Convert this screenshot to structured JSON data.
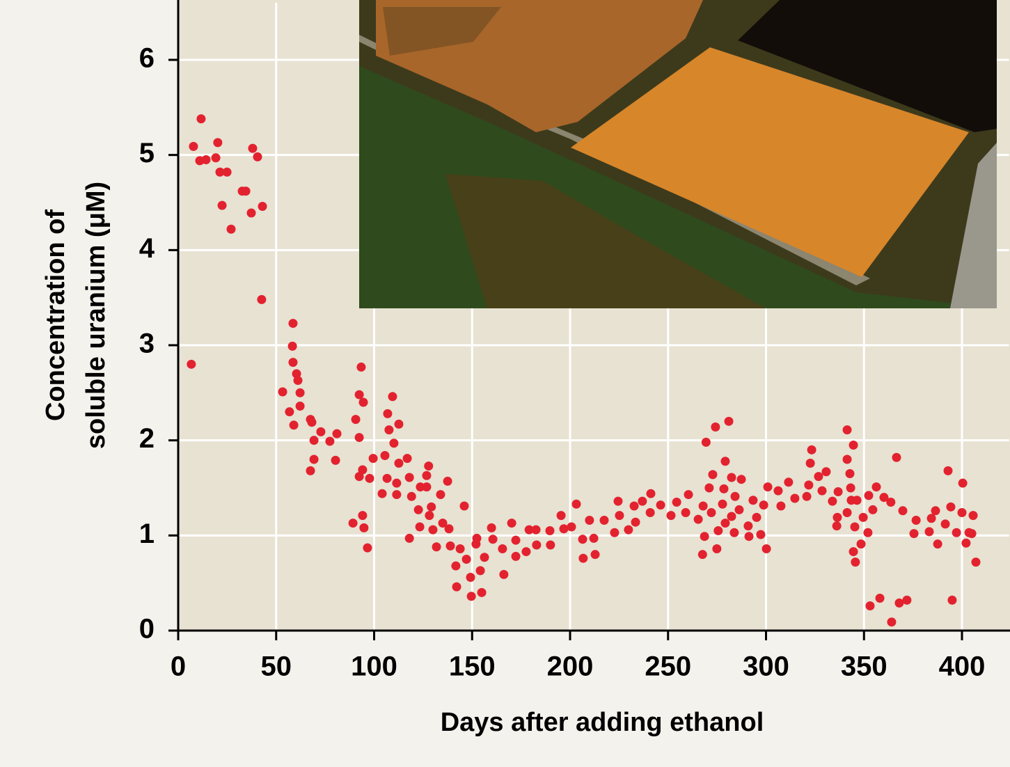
{
  "chart_data": {
    "type": "scatter",
    "x_label": "Days after adding ethanol",
    "y_label": [
      "Concentration of",
      "soluble uranium (μM)"
    ],
    "color": "#e3222f",
    "grid": true,
    "xlim": [
      0,
      424
    ],
    "ylim": [
      0,
      6.6
    ],
    "xticks": [
      0,
      50,
      100,
      150,
      200,
      250,
      300,
      350,
      400
    ],
    "yticks": [
      0,
      1,
      2,
      3,
      4,
      5,
      6
    ],
    "x": [
      6.7,
      7.8,
      11.7,
      11,
      14.2,
      19.2,
      20.2,
      21.3,
      24.9,
      22.4,
      27,
      32.7,
      34.5,
      38,
      40.5,
      37.3,
      43,
      42.6,
      53.3,
      56.8,
      58.6,
      58.3,
      58.6,
      59,
      60.4,
      61.1,
      62.2,
      62.2,
      67.5,
      68.2,
      69.3,
      67.5,
      69.3,
      72.8,
      77.4,
      81,
      80.3,
      89.2,
      90.6,
      92.4,
      92.4,
      93.4,
      94.5,
      92.4,
      94.1,
      94.1,
      94.8,
      96.6,
      97.7,
      99.5,
      104.1,
      105.5,
      106.9,
      106.6,
      107.6,
      109.4,
      110.1,
      111.5,
      111.5,
      112.6,
      112.6,
      116.9,
      118,
      118,
      119.1,
      122.6,
      123.3,
      123.6,
      126.8,
      126.8,
      127.8,
      128.2,
      129.2,
      130,
      131.8,
      133.9,
      135,
      137.5,
      138.2,
      138.9,
      141.7,
      142.1,
      143.9,
      146,
      147.1,
      149.2,
      149.6,
      152.4,
      152,
      154.2,
      154.9,
      156.3,
      159.9,
      160.6,
      165.5,
      166.2,
      170.2,
      172.3,
      172.3,
      177.6,
      179.1,
      182.6,
      182.9,
      189.7,
      190,
      195.4,
      196.8,
      200.7,
      203.2,
      206.4,
      206.7,
      209.9,
      212.1,
      212.8,
      217.4,
      222.7,
      224.5,
      225.2,
      229.8,
      232.7,
      233.4,
      236.9,
      241.2,
      240.9,
      246.2,
      251.5,
      254.4,
      259,
      260.4,
      265.4,
      267.9,
      267.6,
      269.4,
      268.6,
      271,
      272.1,
      272.8,
      274.2,
      274.9,
      275.6,
      277.8,
      278.5,
      279.2,
      279.2,
      281,
      282.4,
      282.4,
      284.2,
      283.8,
      286.3,
      287.4,
      290.9,
      291.3,
      293.4,
      295.2,
      297.3,
      298.8,
      300.2,
      300.9,
      306.2,
      307.6,
      311.5,
      314.7,
      320.8,
      321.8,
      323.3,
      322.6,
      326.8,
      328.6,
      330.7,
      333.9,
      336.4,
      336.1,
      336.8,
      341.4,
      341.4,
      341.4,
      342.8,
      343.2,
      344.6,
      343.5,
      344.6,
      345.6,
      345.3,
      346.4,
      348.5,
      349.6,
      352.4,
      352,
      353.1,
      354.5,
      356.3,
      358.1,
      360.2,
      363.7,
      364.1,
      366.6,
      368,
      369.8,
      371.9,
      375.5,
      376.6,
      383.3,
      384.4,
      386.5,
      387.6,
      391.5,
      392.9,
      394.3,
      395,
      397.2,
      400,
      400.4,
      402.1,
      403.6,
      405,
      405.7,
      407.1
    ],
    "values": [
      2.8,
      5.09,
      5.38,
      4.94,
      4.95,
      4.97,
      5.13,
      4.82,
      4.82,
      4.47,
      4.22,
      4.62,
      4.62,
      5.07,
      4.98,
      4.39,
      4.46,
      3.48,
      2.51,
      2.3,
      3.23,
      2.99,
      2.82,
      2.16,
      2.7,
      2.63,
      2.5,
      2.36,
      2.22,
      2.19,
      2,
      1.68,
      1.8,
      2.09,
      1.99,
      2.07,
      1.79,
      1.13,
      2.22,
      2.03,
      2.48,
      2.77,
      2.4,
      1.62,
      1.69,
      1.21,
      1.08,
      0.87,
      1.6,
      1.81,
      1.44,
      1.84,
      2.28,
      1.6,
      2.11,
      2.46,
      1.97,
      1.55,
      1.43,
      2.17,
      1.76,
      1.81,
      1.61,
      0.97,
      1.41,
      1.27,
      1.09,
      1.51,
      1.51,
      1.63,
      1.73,
      1.21,
      1.3,
      1.06,
      0.88,
      1.43,
      1.13,
      1.57,
      1.07,
      0.89,
      0.68,
      0.46,
      0.86,
      1.31,
      0.75,
      0.56,
      0.36,
      0.97,
      0.91,
      0.63,
      0.4,
      0.77,
      1.08,
      0.96,
      0.86,
      0.59,
      1.13,
      0.95,
      0.78,
      0.83,
      1.06,
      1.06,
      0.9,
      1.05,
      0.9,
      1.21,
      1.07,
      1.09,
      1.33,
      0.96,
      0.76,
      1.16,
      0.97,
      0.8,
      1.16,
      1.03,
      1.36,
      1.21,
      1.06,
      1.31,
      1.14,
      1.36,
      1.44,
      1.24,
      1.32,
      1.21,
      1.35,
      1.24,
      1.43,
      1.17,
      1.31,
      0.8,
      1.98,
      0.99,
      1.5,
      1.24,
      1.64,
      2.14,
      0.86,
      1.05,
      1.33,
      1.49,
      1.78,
      1.13,
      2.2,
      1.61,
      1.2,
      1.41,
      1.03,
      1.27,
      1.59,
      1.1,
      0.99,
      1.37,
      1.19,
      1.01,
      1.32,
      0.86,
      1.51,
      1.47,
      1.31,
      1.56,
      1.39,
      1.41,
      1.53,
      1.9,
      1.76,
      1.62,
      1.47,
      1.67,
      1.36,
      1.19,
      1.1,
      1.46,
      2.11,
      1.8,
      1.24,
      1.65,
      1.5,
      1.95,
      1.37,
      0.83,
      0.72,
      1.09,
      1.37,
      0.91,
      1.19,
      1.42,
      1.03,
      0.26,
      1.27,
      1.51,
      0.34,
      1.4,
      1.35,
      0.09,
      1.82,
      0.29,
      1.26,
      0.32,
      1.02,
      1.16,
      1.04,
      1.18,
      1.26,
      0.91,
      1.12,
      1.68,
      1.3,
      0.32,
      1.03,
      1.24,
      1.55,
      0.92,
      1.03,
      1.02,
      1.21,
      0.72
    ]
  }
}
